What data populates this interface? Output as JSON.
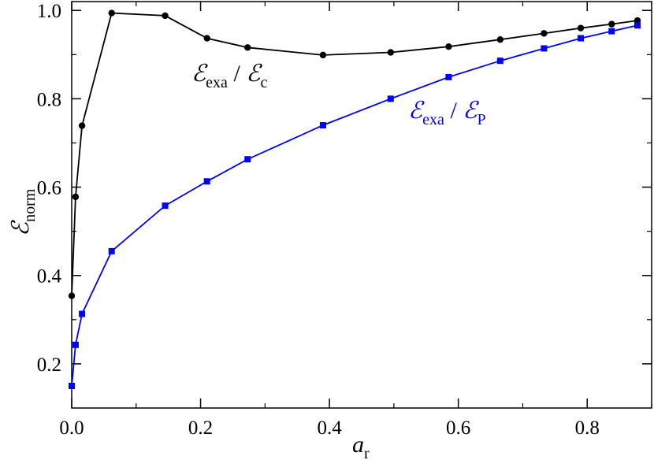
{
  "chart_data": {
    "type": "line",
    "title": "",
    "xlabel": {
      "main": "a",
      "sub": "r"
    },
    "ylabel": {
      "main": "ℰ",
      "sub": "norm"
    },
    "xlim": [
      0,
      0.9
    ],
    "ylim": [
      0.1,
      1.02
    ],
    "x_ticks": [
      "0.0",
      "0.2",
      "0.4",
      "0.6",
      "0.8"
    ],
    "y_ticks": [
      "0.2",
      "0.4",
      "0.6",
      "0.8",
      "1.0"
    ],
    "grid": false,
    "legend": "none",
    "series": [
      {
        "key": "c",
        "color": "#000000",
        "marker": "circle",
        "label_parts": {
          "main1": "ℰ",
          "sub1": "exa",
          "sep": " / ",
          "main2": "ℰ",
          "sub2": "c"
        },
        "x": [
          0.0,
          0.006,
          0.016,
          0.062,
          0.145,
          0.21,
          0.273,
          0.39,
          0.495,
          0.585,
          0.665,
          0.733,
          0.79,
          0.838,
          0.878
        ],
        "y": [
          0.354,
          0.578,
          0.739,
          0.994,
          0.988,
          0.937,
          0.916,
          0.899,
          0.905,
          0.918,
          0.934,
          0.948,
          0.96,
          0.969,
          0.977
        ]
      },
      {
        "key": "P",
        "color": "#0000ff",
        "marker": "square",
        "label_parts": {
          "main1": "ℰ",
          "sub1": "exa",
          "sep": " / ",
          "main2": "ℰ",
          "sub2": "P"
        },
        "x": [
          0.0,
          0.006,
          0.016,
          0.062,
          0.145,
          0.21,
          0.273,
          0.39,
          0.495,
          0.585,
          0.665,
          0.733,
          0.79,
          0.838,
          0.878
        ],
        "y": [
          0.15,
          0.243,
          0.313,
          0.455,
          0.558,
          0.613,
          0.663,
          0.74,
          0.8,
          0.849,
          0.886,
          0.914,
          0.937,
          0.953,
          0.966
        ]
      }
    ]
  }
}
